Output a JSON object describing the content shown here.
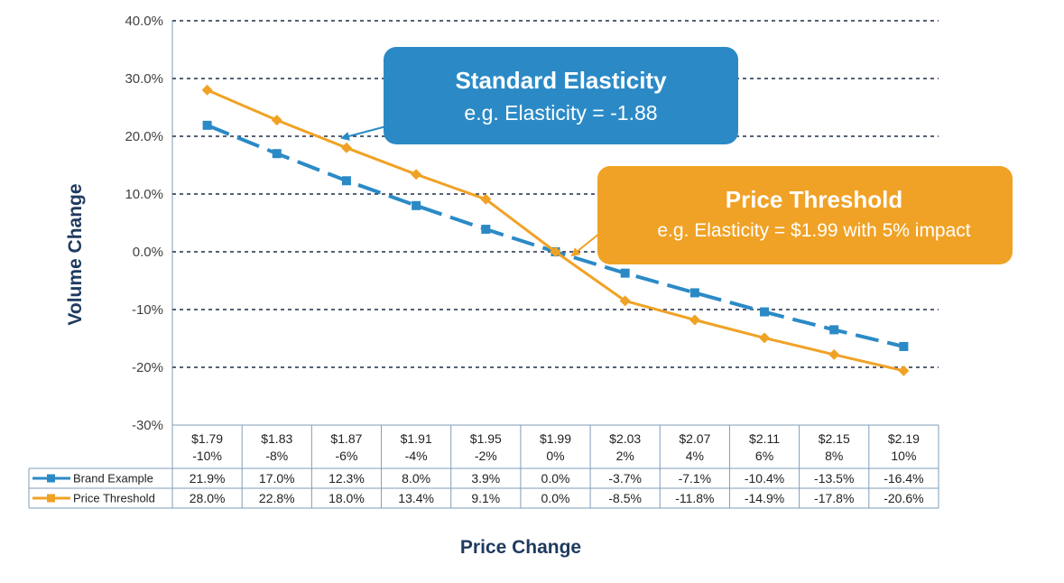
{
  "chart_data": {
    "type": "line",
    "title": "",
    "xlabel": "Price Change",
    "ylabel": "Volume Change",
    "ylim": [
      -30,
      40
    ],
    "y_ticks": [
      {
        "value": 40,
        "label": "40.0%"
      },
      {
        "value": 30,
        "label": "30.0%"
      },
      {
        "value": 20,
        "label": "20.0%"
      },
      {
        "value": 10,
        "label": "10.0%"
      },
      {
        "value": 0,
        "label": "0.0%"
      },
      {
        "value": -10,
        "label": "-10%"
      },
      {
        "value": -20,
        "label": "-20%"
      },
      {
        "value": -30,
        "label": "-30%"
      }
    ],
    "categories": [
      {
        "price": "$1.79",
        "change": "-10%"
      },
      {
        "price": "$1.83",
        "change": "-8%"
      },
      {
        "price": "$1.87",
        "change": "-6%"
      },
      {
        "price": "$1.91",
        "change": "-4%"
      },
      {
        "price": "$1.95",
        "change": "-2%"
      },
      {
        "price": "$1.99",
        "change": "0%"
      },
      {
        "price": "$2.03",
        "change": "2%"
      },
      {
        "price": "$2.07",
        "change": "4%"
      },
      {
        "price": "$2.11",
        "change": "6%"
      },
      {
        "price": "$2.15",
        "change": "8%"
      },
      {
        "price": "$2.19",
        "change": "10%"
      }
    ],
    "grid": true,
    "series": [
      {
        "name": "Brand Example",
        "color": "#2b8ac6",
        "style": "dashed",
        "marker": "square",
        "values": [
          21.9,
          17.0,
          12.3,
          8.0,
          3.9,
          0.0,
          -3.7,
          -7.1,
          -10.4,
          -13.5,
          -16.4
        ],
        "labels": [
          "21.9%",
          "17.0%",
          "12.3%",
          "8.0%",
          "3.9%",
          "0.0%",
          "-3.7%",
          "-7.1%",
          "-10.4%",
          "-13.5%",
          "-16.4%"
        ]
      },
      {
        "name": "Price Threshold",
        "color": "#f0a226",
        "style": "solid",
        "marker": "diamond",
        "values": [
          28.0,
          22.8,
          18.0,
          13.4,
          9.1,
          0.0,
          -8.5,
          -11.8,
          -14.9,
          -17.8,
          -20.6
        ],
        "labels": [
          "28.0%",
          "22.8%",
          "18.0%",
          "13.4%",
          "9.1%",
          "0.0%",
          "-8.5%",
          "-11.8%",
          "-14.9%",
          "-17.8%",
          "-20.6%"
        ]
      }
    ],
    "annotations": [
      {
        "title": "Standard Elasticity",
        "text": "e.g. Elasticity = -1.88",
        "color": "#2b8ac6"
      },
      {
        "title": "Price Threshold",
        "text": "e.g. Elasticity = $1.99 with 5% impact",
        "color": "#f0a226"
      }
    ]
  }
}
